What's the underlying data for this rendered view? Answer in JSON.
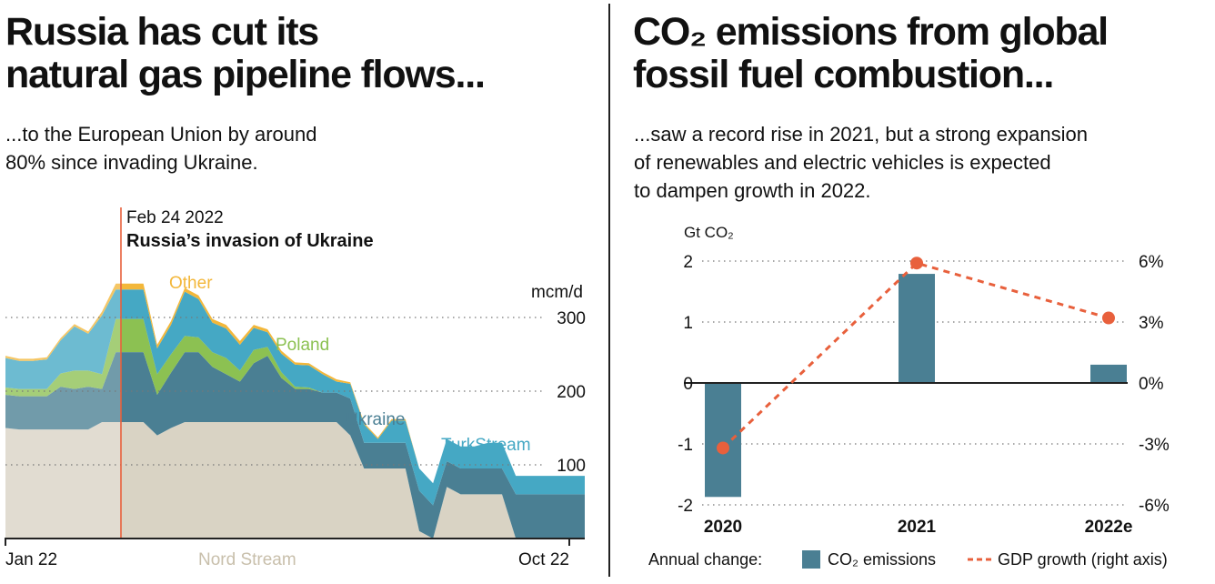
{
  "left": {
    "title_line1": "Russia has cut its",
    "title_line2": "natural gas pipeline flows...",
    "subtitle_line1": "...to the European Union by around",
    "subtitle_line2": "80% since invading Ukraine."
  },
  "right": {
    "title_line1": "CO₂ emissions from global",
    "title_line2": "fossil fuel combustion...",
    "subtitle_line1": "...saw a record rise in 2021, but a strong expansion",
    "subtitle_line2": "of renewables and electric vehicles is expected",
    "subtitle_line3": "to dampen growth in 2022."
  },
  "chart_data": [
    {
      "type": "area",
      "stacked": true,
      "ylabel": "mcm/d",
      "ylim": [
        0,
        350
      ],
      "yticks": [
        "100",
        "200",
        "300"
      ],
      "ytick_values": [
        100,
        200,
        300
      ],
      "xticks": [
        "Jan 22",
        "Oct 22"
      ],
      "annotation": {
        "date": "Feb 24 2022",
        "label": "Russia’s invasion of Ukraine",
        "x_week": 8
      },
      "x_weeks": [
        0,
        1,
        2,
        3,
        4,
        5,
        6,
        7,
        8,
        9,
        10,
        11,
        12,
        13,
        14,
        15,
        16,
        17,
        18,
        19,
        20,
        21,
        22,
        23,
        24,
        25,
        26,
        27,
        28,
        29,
        30,
        31,
        32,
        33,
        34,
        35,
        36,
        37,
        38,
        39,
        40,
        41,
        42
      ],
      "series": [
        {
          "name": "Nord Stream",
          "color": "#d9d3c4",
          "values": [
            150,
            148,
            148,
            148,
            148,
            148,
            148,
            158,
            158,
            158,
            158,
            140,
            150,
            158,
            158,
            158,
            158,
            158,
            158,
            158,
            158,
            158,
            158,
            158,
            158,
            140,
            95,
            95,
            95,
            95,
            10,
            0,
            70,
            60,
            60,
            60,
            60,
            0,
            0,
            0,
            0,
            0,
            0
          ]
        },
        {
          "name": "Ukraine",
          "color": "#4a7f93",
          "values": [
            45,
            45,
            45,
            45,
            58,
            55,
            58,
            45,
            95,
            95,
            95,
            55,
            75,
            95,
            95,
            75,
            65,
            55,
            80,
            90,
            60,
            45,
            45,
            40,
            40,
            50,
            35,
            35,
            35,
            35,
            55,
            45,
            35,
            35,
            35,
            35,
            35,
            60,
            60,
            60,
            60,
            60,
            60
          ]
        },
        {
          "name": "Poland",
          "color": "#8cc152",
          "values": [
            10,
            10,
            10,
            10,
            18,
            25,
            22,
            20,
            45,
            45,
            45,
            28,
            25,
            22,
            20,
            20,
            22,
            15,
            18,
            12,
            8,
            3,
            2,
            0,
            0,
            0,
            0,
            0,
            0,
            0,
            0,
            0,
            0,
            0,
            0,
            0,
            0,
            0,
            0,
            0,
            0,
            0,
            0
          ]
        },
        {
          "name": "TurkStream",
          "color": "#45a8c4",
          "values": [
            40,
            38,
            38,
            40,
            45,
            60,
            50,
            80,
            40,
            40,
            40,
            35,
            40,
            60,
            52,
            40,
            40,
            35,
            30,
            20,
            25,
            30,
            30,
            25,
            15,
            20,
            25,
            5,
            30,
            30,
            30,
            30,
            30,
            30,
            30,
            35,
            35,
            25,
            25,
            25,
            25,
            25,
            25
          ]
        },
        {
          "name": "Other",
          "color": "#f3b73a",
          "values": [
            3,
            3,
            3,
            3,
            3,
            3,
            3,
            5,
            8,
            8,
            8,
            5,
            5,
            5,
            5,
            5,
            5,
            5,
            4,
            4,
            4,
            3,
            3,
            3,
            3,
            2,
            2,
            2,
            2,
            2,
            0,
            0,
            0,
            0,
            0,
            0,
            0,
            0,
            0,
            0,
            0,
            0,
            0
          ]
        }
      ]
    },
    {
      "type": "bar",
      "title": "",
      "ylabel": "Gt CO₂",
      "categories": [
        "2020",
        "2021",
        "2022e"
      ],
      "ylim": [
        -2,
        2
      ],
      "yticks": [
        "-2",
        "-1",
        "0",
        "1",
        "2"
      ],
      "ytick_values": [
        -2,
        -1,
        0,
        1,
        2
      ],
      "y2ticks": [
        "-6%",
        "-3%",
        "0%",
        "3%",
        "6%"
      ],
      "y2tick_values": [
        -6,
        -3,
        0,
        3,
        6
      ],
      "y2lim": [
        -6,
        6
      ],
      "series": [
        {
          "name": "CO₂ emissions",
          "type": "bar",
          "color": "#4a7f93",
          "values": [
            -1.87,
            1.79,
            0.3
          ]
        },
        {
          "name": "GDP growth (right axis)",
          "type": "line",
          "style": "dashed",
          "color": "#e8603c",
          "values": [
            -3.2,
            5.9,
            3.2
          ]
        }
      ],
      "legend": {
        "prefix": "Annual change:",
        "placement": "bottom"
      }
    }
  ]
}
